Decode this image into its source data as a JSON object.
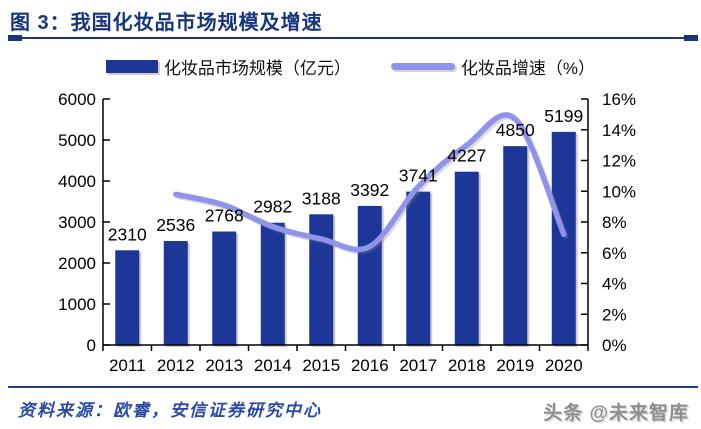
{
  "header": {
    "title": "图 3：我国化妆品市场规模及增速"
  },
  "chart_data": {
    "type": "bar+line",
    "categories": [
      "2011",
      "2012",
      "2013",
      "2014",
      "2015",
      "2016",
      "2017",
      "2018",
      "2019",
      "2020"
    ],
    "series": [
      {
        "name": "化妆品市场规模（亿元）",
        "type": "bar",
        "axis": "left",
        "color": "#1D3798",
        "values": [
          2310,
          2536,
          2768,
          2982,
          3188,
          3392,
          3741,
          4227,
          4850,
          5199
        ]
      },
      {
        "name": "化妆品增速（%）",
        "type": "line",
        "axis": "right",
        "color": "#9193EB",
        "values": [
          null,
          9.8,
          9.1,
          7.7,
          6.9,
          6.4,
          10.3,
          13.0,
          14.7,
          7.2
        ]
      }
    ],
    "bar_value_labels": [
      "2310",
      "2536",
      "2768",
      "2982",
      "3188",
      "3392",
      "3741",
      "4227",
      "4850",
      "5199"
    ],
    "left_axis": {
      "min": 0,
      "max": 6000,
      "step": 1000,
      "tick_labels": [
        "0",
        "1000",
        "2000",
        "3000",
        "4000",
        "5000",
        "6000"
      ]
    },
    "right_axis": {
      "min": 0,
      "max": 16,
      "step": 2,
      "tick_labels": [
        "0%",
        "2%",
        "4%",
        "6%",
        "8%",
        "10%",
        "12%",
        "14%",
        "16%"
      ]
    },
    "grid": false,
    "legend_position": "top",
    "line_smoothed": true
  },
  "footer": {
    "source": "资料来源：欧睿，安信证券研究中心",
    "watermark": "头条 @未来智库"
  }
}
